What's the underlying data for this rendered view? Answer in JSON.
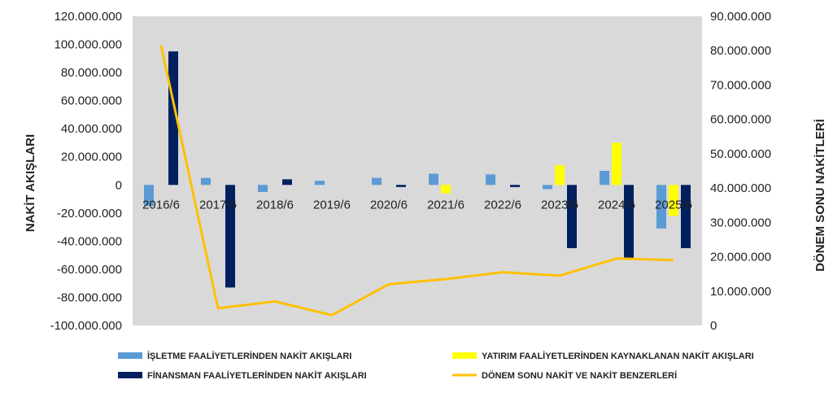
{
  "chart_data": {
    "type": "bar",
    "categories": [
      "2016/6",
      "2017/6",
      "2018/6",
      "2019/6",
      "2020/6",
      "2021/6",
      "2022/6",
      "2023/6",
      "2024/6",
      "2025/6"
    ],
    "series": [
      {
        "name": "İŞLETME FAALİYETLERİNDEN NAKİT AKIŞLARI",
        "type": "bar",
        "axis": "left",
        "color": "#5B9BD5",
        "values": [
          -15000000,
          5000000,
          -5000000,
          3000000,
          5000000,
          8000000,
          7500000,
          -3000000,
          10000000,
          -31000000
        ]
      },
      {
        "name": "YATIRIM FAALİYETLERİNDEN KAYNAKLANAN NAKİT AKIŞLARI",
        "type": "bar",
        "axis": "left",
        "color": "#FFFF00",
        "values": [
          0,
          0,
          0,
          0,
          0,
          -6000000,
          0,
          14000000,
          30000000,
          -22000000
        ]
      },
      {
        "name": "FİNANSMAN FAALİYETLERİNDEN NAKİT AKIŞLARI",
        "type": "bar",
        "axis": "left",
        "color": "#002060",
        "values": [
          95000000,
          -73000000,
          4000000,
          0,
          -1500000,
          0,
          -1500000,
          -45000000,
          -52000000,
          -45000000
        ]
      },
      {
        "name": "DÖNEM SONU NAKİT VE NAKİT BENZERLERİ",
        "type": "line",
        "axis": "right",
        "color": "#FFC000",
        "values": [
          81500000,
          5000000,
          7000000,
          3000000,
          12000000,
          13500000,
          15500000,
          14500000,
          19500000,
          19000000
        ]
      }
    ],
    "ylabel": "NAKİT AKIŞLARI",
    "y2label": "DÖNEM SONU NAKİTLERİ",
    "ylim": [
      -100000000,
      120000000
    ],
    "yticks": [
      "120.000.000",
      "100.000.000",
      "80.000.000",
      "60.000.000",
      "40.000.000",
      "20.000.000",
      "0",
      "-20.000.000",
      "-40.000.000",
      "-60.000.000",
      "-80.000.000",
      "-100.000.000"
    ],
    "y2lim": [
      0,
      90000000
    ],
    "y2ticks": [
      "90.000.000",
      "80.000.000",
      "70.000.000",
      "60.000.000",
      "50.000.000",
      "40.000.000",
      "30.000.000",
      "20.000.000",
      "10.000.000",
      "0"
    ],
    "grid": false,
    "plot_background": "#D9D9D9",
    "legend_position": "bottom"
  }
}
